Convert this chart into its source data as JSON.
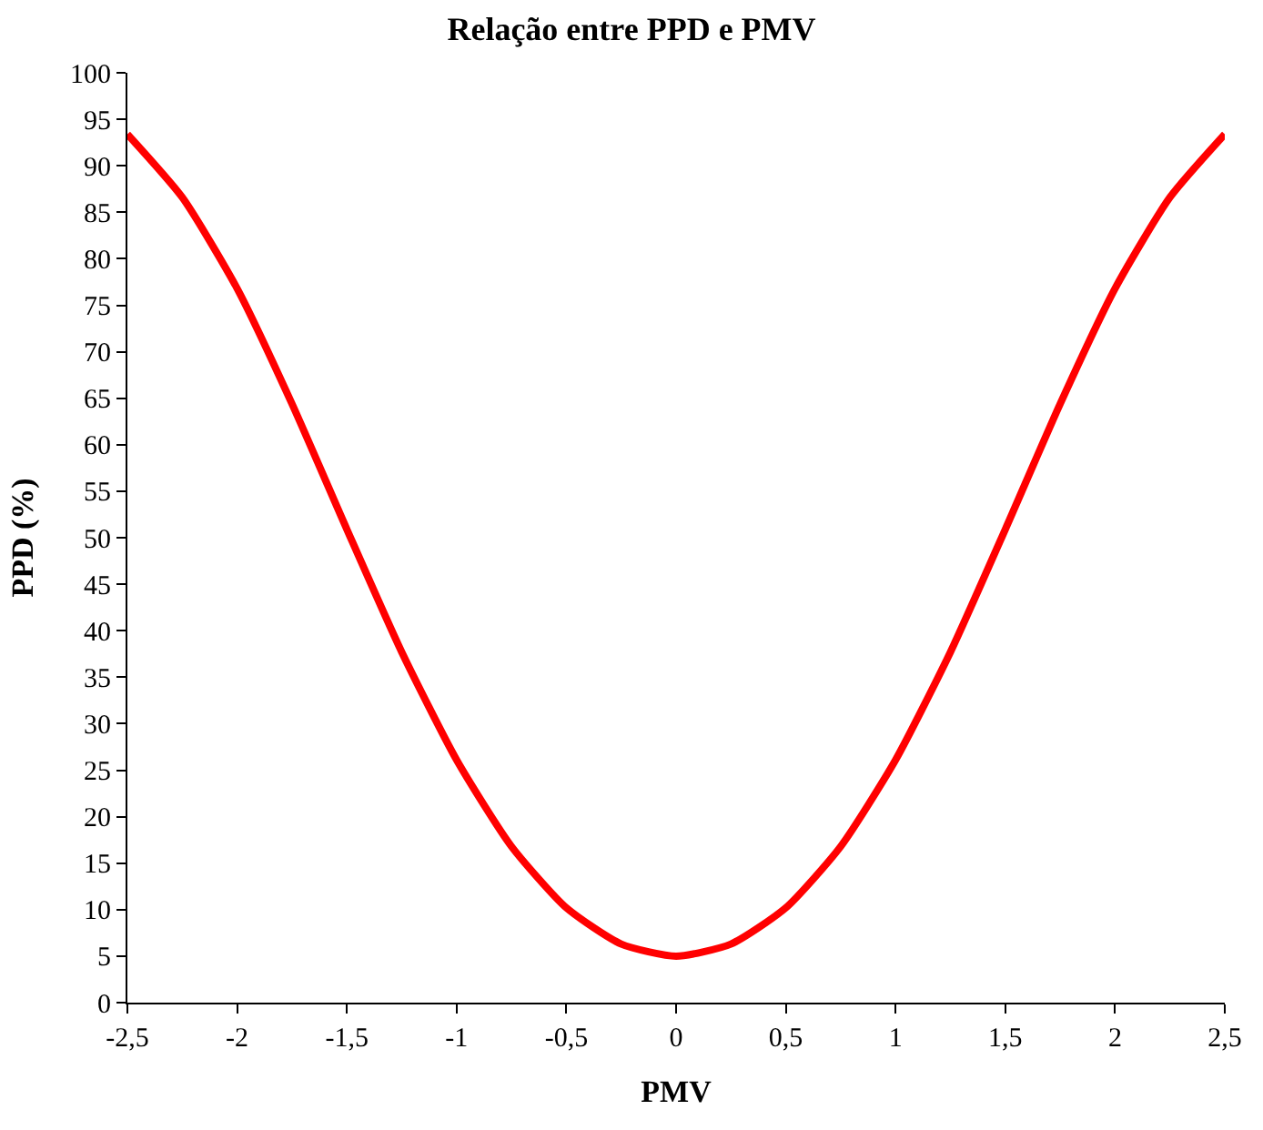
{
  "chart_data": {
    "type": "line",
    "title": "Relação entre PPD e PMV",
    "xlabel": "PMV",
    "ylabel": "PPD (%)",
    "x": [
      -2.5,
      -2.25,
      -2,
      -1.75,
      -1.5,
      -1.25,
      -1,
      -0.75,
      -0.5,
      -0.25,
      0,
      0.25,
      0.5,
      0.75,
      1,
      1.25,
      1.5,
      1.75,
      2,
      2.25,
      2.5
    ],
    "series": [
      {
        "color": "#ff0000",
        "values": [
          93.4,
          86.6,
          76.8,
          64.4,
          50.9,
          37.7,
          26.1,
          16.8,
          10.2,
          6.3,
          5,
          6.3,
          10.2,
          16.8,
          26.1,
          37.7,
          50.9,
          64.4,
          76.8,
          86.6,
          93.4
        ]
      }
    ],
    "xlim": [
      -2.5,
      2.5
    ],
    "xticks": [
      {
        "value": -2.5,
        "label": "-2,5"
      },
      {
        "value": -2,
        "label": "-2"
      },
      {
        "value": -1.5,
        "label": "-1,5"
      },
      {
        "value": -1,
        "label": "-1"
      },
      {
        "value": -0.5,
        "label": "-0,5"
      },
      {
        "value": 0,
        "label": "0"
      },
      {
        "value": 0.5,
        "label": "0,5"
      },
      {
        "value": 1,
        "label": "1"
      },
      {
        "value": 1.5,
        "label": "1,5"
      },
      {
        "value": 2,
        "label": "2"
      },
      {
        "value": 2.5,
        "label": "2,5"
      }
    ],
    "ylim": [
      0,
      100
    ],
    "yticks": [
      0,
      5,
      10,
      15,
      20,
      25,
      30,
      35,
      40,
      45,
      50,
      55,
      60,
      65,
      70,
      75,
      80,
      85,
      90,
      95,
      100
    ],
    "marker": "none",
    "line_style": "solid"
  }
}
